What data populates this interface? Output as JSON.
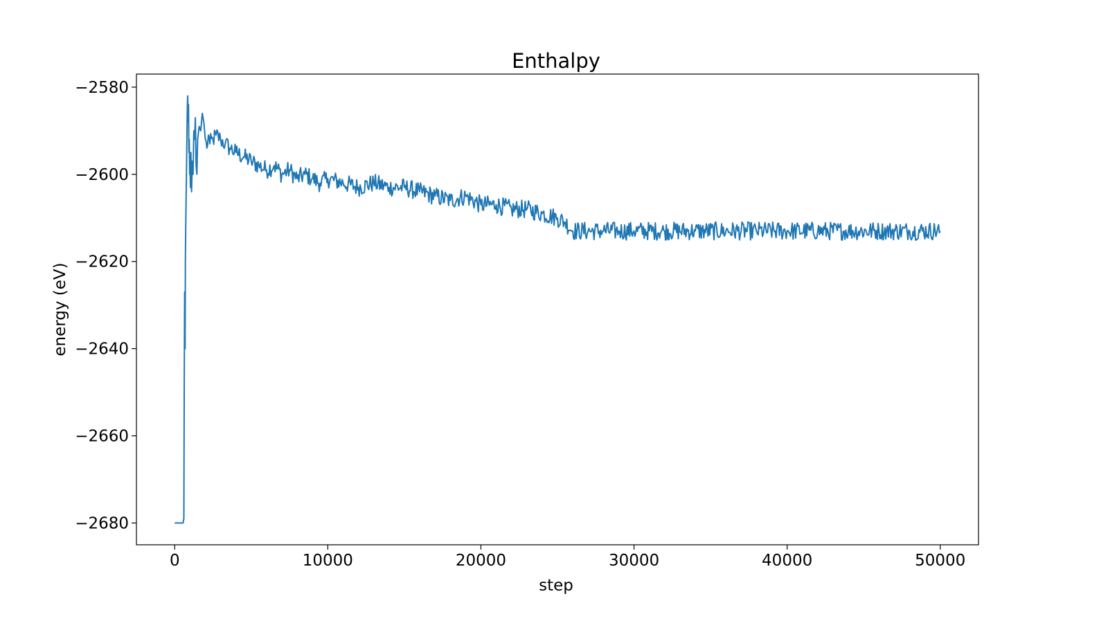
{
  "chart_data": {
    "type": "line",
    "title": "Enthalpy",
    "xlabel": "step",
    "ylabel": "energy (eV)",
    "xlim": [
      -2500,
      52500
    ],
    "ylim": [
      -2685,
      -2577
    ],
    "x_ticks": [
      0,
      10000,
      20000,
      30000,
      40000,
      50000
    ],
    "x_tick_labels": [
      "0",
      "10000",
      "20000",
      "30000",
      "40000",
      "50000"
    ],
    "y_ticks": [
      -2580,
      -2600,
      -2620,
      -2640,
      -2660,
      -2680
    ],
    "y_tick_labels": [
      "−2580",
      "−2600",
      "−2620",
      "−2640",
      "−2660",
      "−2680"
    ],
    "grid": false,
    "legend": "none",
    "series": [
      {
        "color": "#1f77b4",
        "x": [
          0,
          300,
          550,
          600,
          620,
          650,
          680,
          700,
          720,
          750,
          780,
          800,
          830,
          850,
          870,
          900,
          930,
          950,
          980,
          1000,
          1030,
          1060,
          1100,
          1150,
          1200,
          1250,
          1300,
          1350,
          1400,
          1450,
          1500,
          1600,
          1700,
          1800,
          1900,
          2000,
          2100,
          2200,
          2300,
          2500,
          2700,
          3000,
          3300,
          3600,
          4000,
          4500,
          5000,
          5500,
          6000,
          6500,
          7000,
          7500,
          8000,
          8500,
          9000,
          9500,
          10000,
          11000,
          12000,
          13000,
          14000,
          15000,
          16000,
          17000,
          18000,
          19000,
          20000,
          21000,
          22000,
          23000,
          24000,
          25000,
          25500,
          26000,
          27000,
          28000,
          29000,
          30000,
          32000,
          34000,
          36000,
          38000,
          40000,
          42000,
          44000,
          46000,
          48000,
          50000
        ],
        "y": [
          -2680,
          -2680,
          -2680,
          -2679,
          -2651,
          -2627,
          -2640,
          -2620,
          -2612,
          -2604,
          -2597,
          -2590,
          -2584,
          -2582,
          -2588,
          -2584,
          -2595,
          -2592,
          -2600,
          -2598,
          -2603,
          -2595,
          -2604,
          -2597,
          -2600,
          -2590,
          -2592,
          -2587,
          -2598,
          -2600,
          -2592,
          -2589,
          -2590,
          -2586,
          -2588,
          -2592,
          -2594,
          -2591,
          -2593,
          -2592,
          -2591,
          -2592,
          -2593,
          -2594,
          -2595,
          -2596,
          -2597,
          -2598,
          -2599,
          -2598,
          -2600,
          -2599,
          -2601,
          -2600,
          -2601,
          -2602,
          -2601,
          -2602,
          -2603,
          -2602,
          -2603,
          -2603,
          -2604,
          -2605,
          -2606,
          -2605,
          -2607,
          -2607,
          -2608,
          -2608,
          -2609,
          -2610,
          -2611,
          -2613,
          -2613,
          -2613,
          -2613,
          -2613,
          -2613,
          -2613,
          -2613,
          -2613,
          -2613,
          -2613,
          -2613,
          -2613,
          -2613,
          -2613
        ]
      }
    ]
  }
}
